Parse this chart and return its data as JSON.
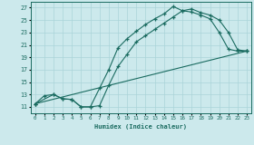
{
  "xlabel": "Humidex (Indice chaleur)",
  "xlim": [
    -0.5,
    23.5
  ],
  "ylim": [
    10.0,
    28.0
  ],
  "xticks": [
    0,
    1,
    2,
    3,
    4,
    5,
    6,
    7,
    8,
    9,
    10,
    11,
    12,
    13,
    14,
    15,
    16,
    17,
    18,
    19,
    20,
    21,
    22,
    23
  ],
  "yticks": [
    11,
    13,
    15,
    17,
    19,
    21,
    23,
    25,
    27
  ],
  "bg_color": "#cce9ec",
  "grid_color": "#b0d8dc",
  "line_color": "#1a6b60",
  "line1_x": [
    0,
    1,
    2,
    3,
    4,
    5,
    6,
    7,
    8,
    9,
    10,
    11,
    12,
    13,
    14,
    15,
    16,
    17,
    18,
    19,
    20,
    21,
    22,
    23
  ],
  "line1_y": [
    11.5,
    12.8,
    13.0,
    12.3,
    12.2,
    11.0,
    11.0,
    14.0,
    17.0,
    20.5,
    22.0,
    23.2,
    24.3,
    25.2,
    26.0,
    27.2,
    26.5,
    26.3,
    25.8,
    25.2,
    23.0,
    20.3,
    20.0,
    20.0
  ],
  "line2_x": [
    0,
    2,
    3,
    4,
    5,
    6,
    7,
    8,
    9,
    10,
    11,
    12,
    13,
    14,
    15,
    16,
    17,
    18,
    19,
    20,
    21,
    22,
    23
  ],
  "line2_y": [
    11.5,
    13.0,
    12.3,
    12.2,
    11.0,
    11.0,
    11.2,
    14.5,
    17.5,
    19.5,
    21.5,
    22.5,
    23.5,
    24.5,
    25.5,
    26.5,
    26.8,
    26.2,
    25.8,
    25.0,
    23.0,
    20.2,
    20.0
  ],
  "line3_x": [
    0,
    23
  ],
  "line3_y": [
    11.5,
    20.0
  ]
}
